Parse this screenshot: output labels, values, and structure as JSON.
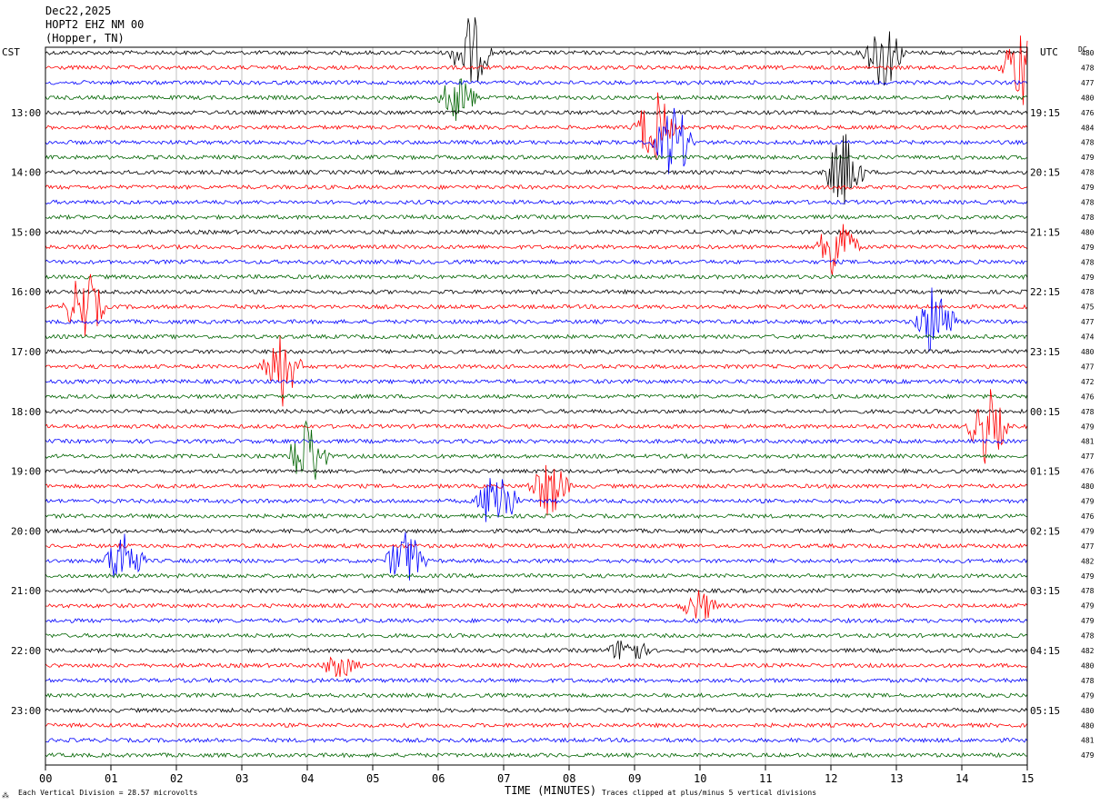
{
  "header": {
    "date": "Dec22,2025",
    "station": "HOPT2 EHZ NM 00",
    "location": "(Hopper, TN)"
  },
  "left_axis_label": "CST",
  "right_axis_label": "UTC",
  "dc_label": "DC",
  "footer": {
    "scale": "Each Vertical Division =   28.57 microvolts",
    "clip": "Traces clipped at plus/minus 5 vertical divisions"
  },
  "colors": {
    "trace_cycle": [
      "#000000",
      "#ff0000",
      "#0000ff",
      "#006400"
    ],
    "grid": "#999999"
  },
  "chart_data": {
    "type": "line",
    "title": "HOPT2 EHZ NM 00",
    "xlabel": "TIME (MINUTES)",
    "xlim": [
      0,
      15
    ],
    "x_ticks": [
      "00",
      "01",
      "02",
      "03",
      "04",
      "05",
      "06",
      "07",
      "08",
      "09",
      "10",
      "11",
      "12",
      "13",
      "14",
      "15"
    ],
    "trace_count": 48,
    "traces_per_hour": 4,
    "cst_hours": [
      "13:00",
      "14:00",
      "15:00",
      "16:00",
      "17:00",
      "18:00",
      "19:00",
      "20:00",
      "21:00",
      "22:00",
      "23:00"
    ],
    "utc_hours": [
      "19:15",
      "20:15",
      "21:15",
      "22:15",
      "23:15",
      "00:15",
      "01:15",
      "02:15",
      "03:15",
      "04:15",
      "05:15"
    ],
    "dc_offsets": [
      480,
      478,
      477,
      480,
      476,
      484,
      478,
      479,
      478,
      479,
      478,
      478,
      480,
      479,
      478,
      479,
      478,
      475,
      477,
      474,
      480,
      477,
      472,
      476,
      478,
      479,
      481,
      477,
      476,
      480,
      479,
      476,
      479,
      477,
      482,
      479,
      478,
      479,
      479,
      478,
      482,
      480,
      478,
      479,
      480,
      480,
      481,
      479
    ],
    "events": [
      {
        "trace": 0,
        "minute": 6.5,
        "amp": 5
      },
      {
        "trace": 0,
        "minute": 12.8,
        "amp": 5
      },
      {
        "trace": 1,
        "minute": 14.9,
        "amp": 5
      },
      {
        "trace": 3,
        "minute": 6.3,
        "amp": 3
      },
      {
        "trace": 5,
        "minute": 9.3,
        "amp": 5
      },
      {
        "trace": 6,
        "minute": 9.6,
        "amp": 5
      },
      {
        "trace": 8,
        "minute": 12.2,
        "amp": 5
      },
      {
        "trace": 13,
        "minute": 12.1,
        "amp": 5
      },
      {
        "trace": 17,
        "minute": 0.6,
        "amp": 5
      },
      {
        "trace": 18,
        "minute": 13.6,
        "amp": 5
      },
      {
        "trace": 21,
        "minute": 3.6,
        "amp": 5
      },
      {
        "trace": 25,
        "minute": 14.4,
        "amp": 5
      },
      {
        "trace": 27,
        "minute": 4.0,
        "amp": 5
      },
      {
        "trace": 29,
        "minute": 7.7,
        "amp": 4
      },
      {
        "trace": 30,
        "minute": 6.9,
        "amp": 5
      },
      {
        "trace": 34,
        "minute": 1.2,
        "amp": 4
      },
      {
        "trace": 34,
        "minute": 5.5,
        "amp": 4
      },
      {
        "trace": 37,
        "minute": 10.0,
        "amp": 2
      },
      {
        "trace": 40,
        "minute": 8.9,
        "amp": 2
      },
      {
        "trace": 41,
        "minute": 4.5,
        "amp": 1.5
      }
    ]
  }
}
